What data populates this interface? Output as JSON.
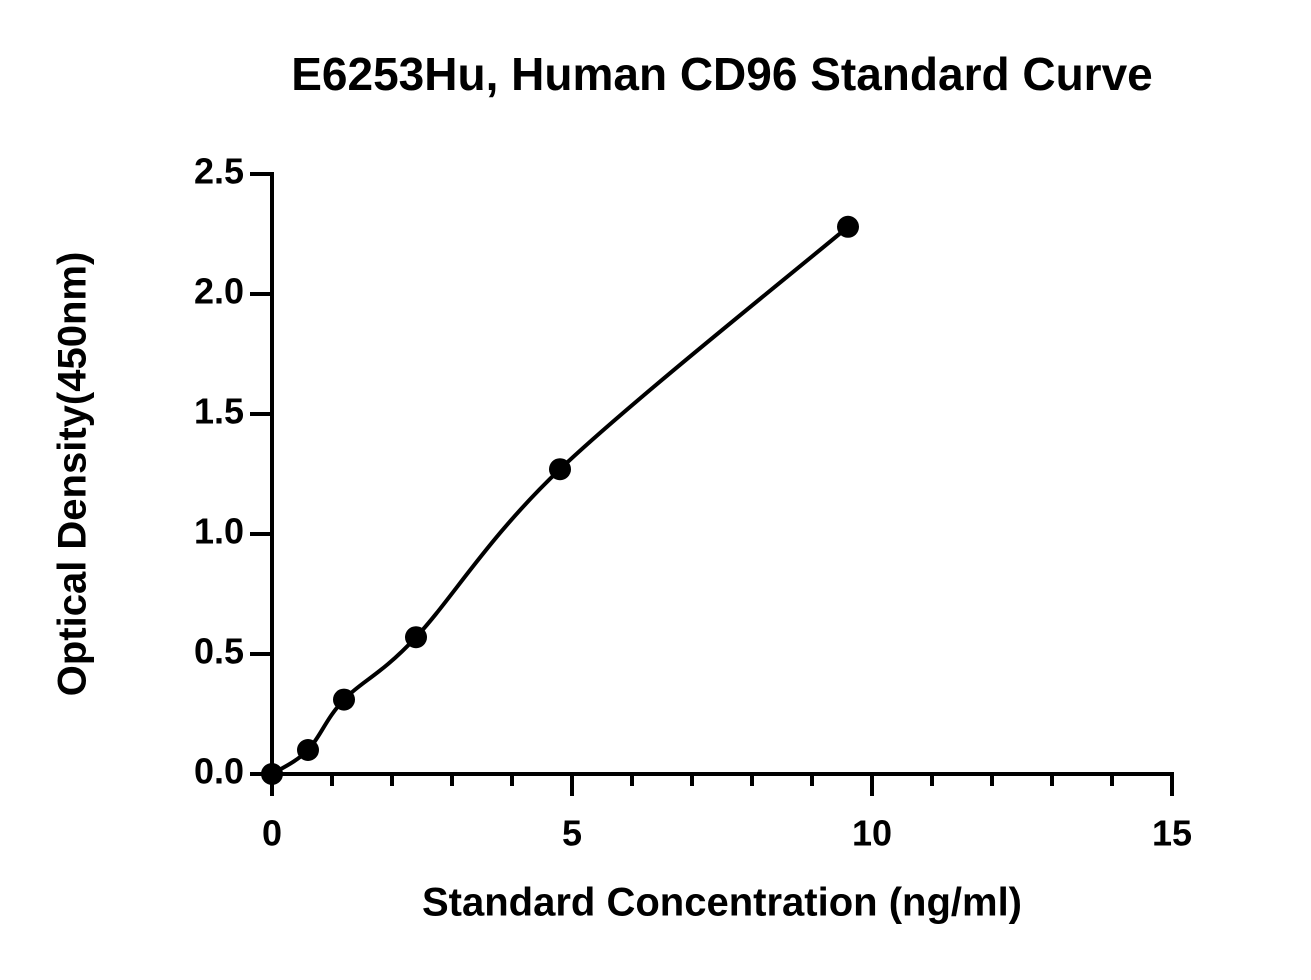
{
  "chart_data": {
    "type": "scatter",
    "title": "E6253Hu, Human CD96 Standard Curve",
    "xlabel": "Standard Concentration (ng/ml)",
    "ylabel": "Optical Density(450nm)",
    "series": [
      {
        "name": "CD96",
        "color": "#000000",
        "x": [
          0,
          0.6,
          1.2,
          2.4,
          4.8,
          9.6
        ],
        "values": [
          0.0,
          0.1,
          0.31,
          0.57,
          1.27,
          2.28
        ]
      }
    ],
    "xlim": [
      0,
      15
    ],
    "xticks": [
      0,
      5,
      10,
      15
    ],
    "xminorticks": [
      1,
      2,
      3,
      4,
      6,
      7,
      8,
      9,
      11,
      12,
      13,
      14
    ],
    "ylim": [
      0,
      2.5
    ],
    "yticks": [
      {
        "value": 0,
        "label": "0.0"
      },
      {
        "value": 0.5,
        "label": "0.5"
      },
      {
        "value": 1,
        "label": "1.0"
      },
      {
        "value": 1.5,
        "label": "1.5"
      },
      {
        "value": 2,
        "label": "2.0"
      },
      {
        "value": 2.5,
        "label": "2.5"
      }
    ]
  }
}
